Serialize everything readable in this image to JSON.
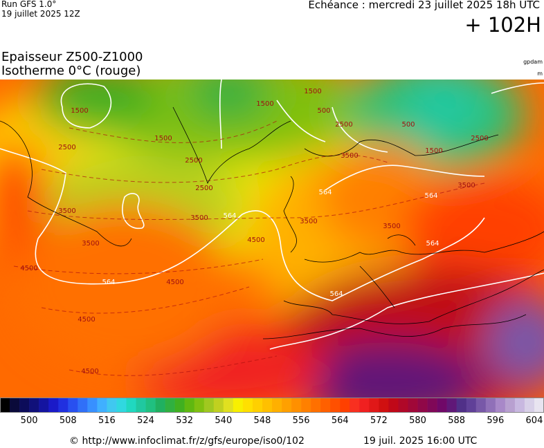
{
  "header": {
    "run": "Run GFS 1.0°",
    "run_date": "19 juillet 2025 12Z",
    "valid": "Echéance : mercredi 23 juillet 2025 18h UTC",
    "lead": "+ 102H",
    "title": "Epaisseur Z500-Z1000",
    "subtitle": "Isotherme 0°C (rouge)",
    "unit_thickness": "gpdam",
    "unit_iso": "m"
  },
  "map": {
    "labels": [
      "1500",
      "1500",
      "1500",
      "1500",
      "1500",
      "500",
      "500",
      "2500",
      "2500",
      "2500",
      "2500",
      "2500",
      "3500",
      "3500",
      "3500",
      "3500",
      "3500",
      "3500",
      "3500",
      "4500",
      "4500",
      "4500",
      "4500",
      "4500",
      "564",
      "564",
      "564",
      "564",
      "564",
      "564"
    ]
  },
  "colorbar": {
    "range": [
      494,
      606
    ],
    "ticks": [
      500,
      508,
      516,
      524,
      532,
      540,
      548,
      556,
      564,
      572,
      580,
      588,
      596,
      604
    ],
    "colors": [
      "#000000",
      "#0a0a3a",
      "#0c0c5a",
      "#10107a",
      "#1414a0",
      "#1a1ac8",
      "#2030e0",
      "#2850f0",
      "#3070f8",
      "#3890ff",
      "#40b0ff",
      "#40c8f0",
      "#30d8e0",
      "#20d8c0",
      "#20c8a0",
      "#20c080",
      "#20b060",
      "#30b040",
      "#40b020",
      "#60b810",
      "#80c010",
      "#a0c820",
      "#c0d020",
      "#e0e020",
      "#f8f000",
      "#ffe000",
      "#ffd000",
      "#ffc000",
      "#ffb000",
      "#ffa000",
      "#ff9000",
      "#ff8000",
      "#ff7000",
      "#ff6000",
      "#ff5000",
      "#ff4000",
      "#f83020",
      "#f02020",
      "#e01818",
      "#d01010",
      "#c00818",
      "#b00828",
      "#a00838",
      "#900848",
      "#800858",
      "#700868",
      "#601878",
      "#503088",
      "#604098",
      "#7858a8",
      "#9070b8",
      "#a888c8",
      "#b8a0d0",
      "#c8b8e0",
      "#d8d0e8",
      "#e8e4f0"
    ]
  },
  "footer": {
    "url": "© http://www.infoclimat.fr/z/gfs/europe/iso0/102",
    "time": "19 juil. 2025 16:00 UTC"
  }
}
